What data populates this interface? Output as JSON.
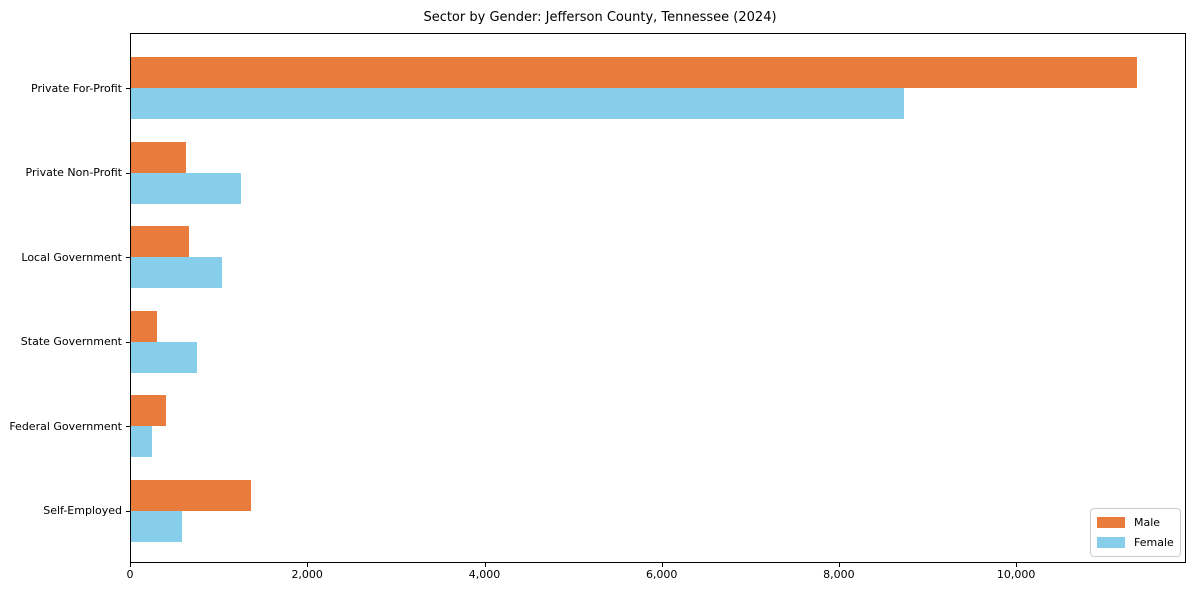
{
  "chart_data": {
    "type": "bar",
    "orientation": "horizontal",
    "title": "Sector by Gender: Jefferson County, Tennessee (2024)",
    "categories": [
      "Private For-Profit",
      "Private Non-Profit",
      "Local Government",
      "State Government",
      "Federal Government",
      "Self-Employed"
    ],
    "series": [
      {
        "name": "Male",
        "color": "#e97c3c",
        "values": [
          11350,
          625,
          650,
          290,
          400,
          1350
        ]
      },
      {
        "name": "Female",
        "color": "#87ceeb",
        "values": [
          8720,
          1245,
          1030,
          740,
          240,
          570
        ]
      }
    ],
    "xlim": [
      0,
      11917
    ],
    "x_tick_values": [
      0,
      2000,
      4000,
      6000,
      8000,
      10000
    ],
    "x_tick_labels": [
      "0",
      "2,000",
      "4,000",
      "6,000",
      "8,000",
      "10,000"
    ],
    "grid": "off",
    "legend_position": "lower right"
  }
}
